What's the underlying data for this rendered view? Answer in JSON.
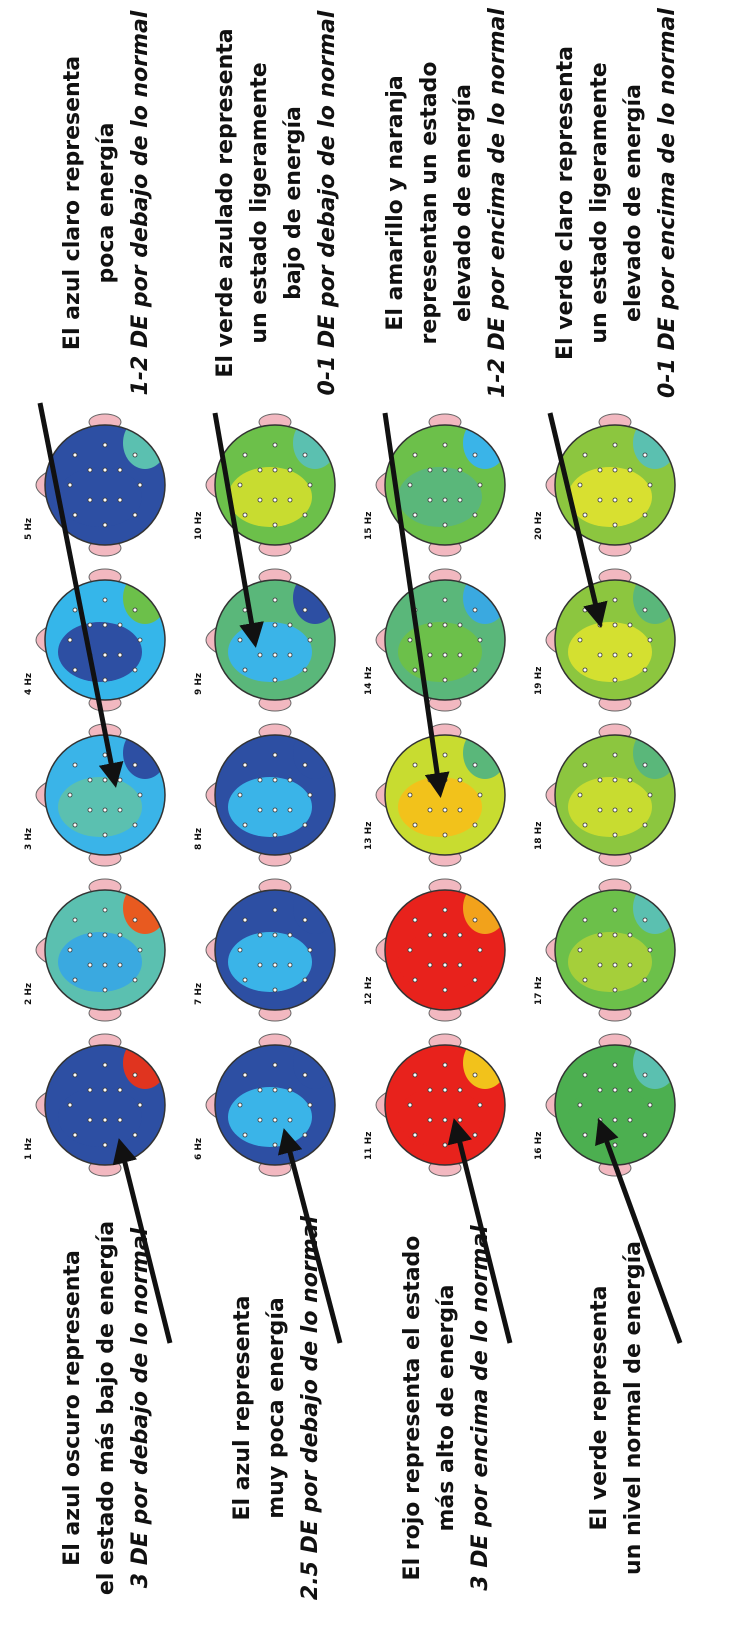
{
  "rows": [
    {
      "left": [
        "El azul oscuro representa",
        "el estado más bajo de energía",
        "3 DE por debajo de lo normal"
      ],
      "heads": [
        "1 Hz",
        "2 Hz",
        "3 Hz",
        "4 Hz",
        "5 Hz"
      ],
      "right": [
        "El azul claro representa",
        "poca energía",
        "1-2 DE por debajo de lo normal"
      ]
    },
    {
      "left": [
        "El azul representa",
        "muy poca energía",
        "2.5 DE por debajo de lo normal"
      ],
      "heads": [
        "6 Hz",
        "7 Hz",
        "8 Hz",
        "9 Hz",
        "10 Hz"
      ],
      "right": [
        "El verde azulado representa",
        "un estado ligeramente",
        "bajo de energía",
        "0-1 DE por debajo de lo normal"
      ]
    },
    {
      "left": [
        "El rojo representa el estado",
        "más alto de energía",
        "3 DE por encima de lo normal"
      ],
      "heads": [
        "11 Hz",
        "12 Hz",
        "13 Hz",
        "14 Hz",
        "15 Hz"
      ],
      "right": [
        "El amarillo y naranja",
        "representan un estado",
        "elevado de energía",
        "1-2 DE por encima de lo normal"
      ]
    },
    {
      "left": [
        "El verde representa",
        "un nivel normal de energía"
      ],
      "heads": [
        "16 Hz",
        "17 Hz",
        "18 Hz",
        "19 Hz",
        "20 Hz"
      ],
      "right": [
        "El verde claro representa",
        "un estado ligeramente",
        "elevado de energía",
        "0-1 DE por encima de lo normal"
      ]
    }
  ]
}
